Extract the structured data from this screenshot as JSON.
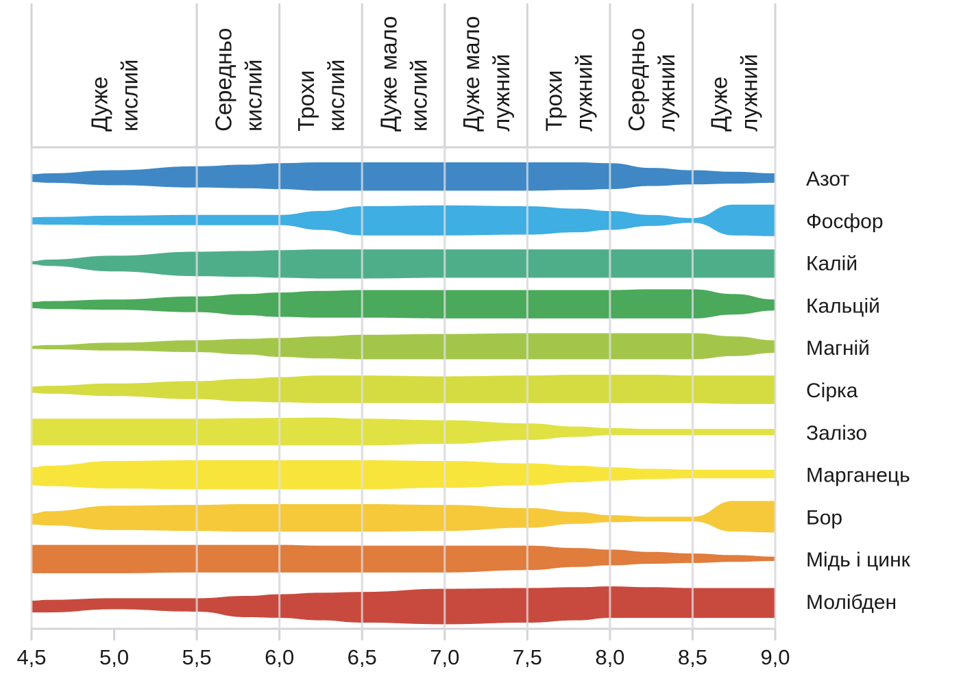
{
  "chart_data": {
    "type": "area",
    "title": "",
    "xlabel": "",
    "ylabel": "",
    "xlim": [
      4.5,
      9.0
    ],
    "x_ticks": [
      "4,5",
      "5,0",
      "5,5",
      "6,0",
      "6,5",
      "7,0",
      "7,5",
      "8,0",
      "8,5",
      "9,0"
    ],
    "x_tick_values": [
      4.5,
      5.0,
      5.5,
      6.0,
      6.5,
      7.0,
      7.5,
      8.0,
      8.5,
      9.0
    ],
    "grid": true,
    "value_meaning": "relative nutrient availability; each band's upper and lower extent from its centerline as a fraction of the maximum half-thickness",
    "ph_zones": [
      {
        "from": 4.5,
        "to": 5.5,
        "lines": [
          "Дуже",
          "кислий"
        ]
      },
      {
        "from": 5.5,
        "to": 6.0,
        "lines": [
          "Середньо",
          "кислий"
        ]
      },
      {
        "from": 6.0,
        "to": 6.5,
        "lines": [
          "Трохи",
          "кислий"
        ]
      },
      {
        "from": 6.5,
        "to": 7.0,
        "lines": [
          "Дуже мало",
          "кислий"
        ]
      },
      {
        "from": 7.0,
        "to": 7.5,
        "lines": [
          "Дуже мало",
          "лужний"
        ]
      },
      {
        "from": 7.5,
        "to": 8.0,
        "lines": [
          "Трохи",
          "лужний"
        ]
      },
      {
        "from": 8.0,
        "to": 8.5,
        "lines": [
          "Середньо",
          "лужний"
        ]
      },
      {
        "from": 8.5,
        "to": 9.0,
        "lines": [
          "Дуже",
          "лужний"
        ]
      }
    ],
    "x": [
      4.5,
      4.6,
      5.0,
      5.5,
      5.8,
      6.0,
      6.25,
      6.5,
      7.0,
      7.5,
      7.8,
      8.0,
      8.25,
      8.5,
      8.75,
      9.0
    ],
    "series": [
      {
        "name": "Азот",
        "color": "#3f88c5",
        "upper": [
          0.25,
          0.3,
          0.5,
          0.75,
          0.85,
          0.95,
          1.0,
          1.0,
          1.0,
          1.0,
          1.0,
          0.95,
          0.65,
          0.5,
          0.4,
          0.3
        ],
        "lower": [
          0.25,
          0.3,
          0.45,
          0.6,
          0.65,
          0.7,
          0.8,
          0.8,
          0.8,
          0.8,
          0.75,
          0.7,
          0.5,
          0.4,
          0.35,
          0.3
        ]
      },
      {
        "name": "Фосфор",
        "color": "#3faee2",
        "upper": [
          0.2,
          0.22,
          0.3,
          0.35,
          0.35,
          0.35,
          0.6,
          0.9,
          0.95,
          0.9,
          0.75,
          0.6,
          0.35,
          0.15,
          1.0,
          1.0
        ],
        "lower": [
          0.25,
          0.27,
          0.3,
          0.3,
          0.3,
          0.3,
          0.6,
          0.95,
          0.95,
          0.9,
          0.75,
          0.6,
          0.35,
          0.15,
          0.95,
          1.0
        ]
      },
      {
        "name": "Калій",
        "color": "#4fae8a",
        "upper": [
          0.1,
          0.2,
          0.45,
          0.7,
          0.75,
          0.8,
          0.85,
          0.85,
          0.85,
          0.85,
          0.85,
          0.85,
          0.85,
          0.85,
          0.85,
          0.85
        ],
        "lower": [
          0.1,
          0.2,
          0.55,
          0.85,
          0.9,
          0.95,
          1.0,
          1.0,
          0.95,
          0.95,
          0.95,
          0.95,
          0.95,
          0.95,
          0.95,
          0.95
        ]
      },
      {
        "name": "Кальцій",
        "color": "#4aa95a",
        "upper": [
          0.2,
          0.25,
          0.35,
          0.55,
          0.7,
          0.8,
          0.9,
          0.95,
          0.95,
          0.95,
          0.95,
          0.95,
          1.0,
          1.0,
          0.7,
          0.35
        ],
        "lower": [
          0.2,
          0.25,
          0.3,
          0.45,
          0.65,
          0.75,
          0.8,
          0.8,
          0.85,
          0.85,
          0.85,
          0.85,
          0.85,
          0.85,
          0.6,
          0.35
        ]
      },
      {
        "name": "Магній",
        "color": "#a3c64a",
        "upper": [
          0.1,
          0.15,
          0.3,
          0.45,
          0.55,
          0.6,
          0.7,
          0.8,
          0.85,
          0.9,
          0.9,
          0.9,
          0.9,
          0.9,
          0.7,
          0.45
        ],
        "lower": [
          0.1,
          0.12,
          0.2,
          0.3,
          0.45,
          0.6,
          0.7,
          0.75,
          0.75,
          0.75,
          0.75,
          0.75,
          0.75,
          0.75,
          0.55,
          0.35
        ]
      },
      {
        "name": "Сірка",
        "color": "#d4dc42",
        "upper": [
          0.2,
          0.25,
          0.4,
          0.55,
          0.7,
          0.8,
          0.9,
          0.9,
          0.85,
          0.9,
          0.95,
          0.95,
          0.95,
          0.9,
          0.9,
          0.9
        ],
        "lower": [
          0.2,
          0.25,
          0.4,
          0.6,
          0.75,
          0.8,
          0.85,
          0.85,
          0.85,
          0.85,
          0.85,
          0.85,
          0.85,
          0.85,
          0.9,
          0.9
        ]
      },
      {
        "name": "Залізо",
        "color": "#dfe242",
        "upper": [
          0.85,
          0.85,
          0.85,
          0.85,
          0.88,
          0.9,
          0.92,
          0.85,
          0.75,
          0.55,
          0.35,
          0.25,
          0.2,
          0.2,
          0.2,
          0.2
        ],
        "lower": [
          0.85,
          0.85,
          0.85,
          0.85,
          0.85,
          0.85,
          0.85,
          0.85,
          0.75,
          0.5,
          0.3,
          0.2,
          0.2,
          0.2,
          0.2,
          0.2
        ]
      },
      {
        "name": "Марганець",
        "color": "#f8e53c",
        "upper": [
          0.45,
          0.55,
          0.85,
          0.9,
          0.9,
          0.9,
          0.9,
          0.9,
          0.85,
          0.7,
          0.55,
          0.45,
          0.35,
          0.3,
          0.3,
          0.3
        ],
        "lower": [
          0.7,
          0.75,
          0.9,
          0.95,
          0.95,
          0.95,
          0.95,
          0.95,
          0.85,
          0.7,
          0.5,
          0.4,
          0.3,
          0.25,
          0.25,
          0.25
        ],
        "offset": 0
      },
      {
        "name": "Бор",
        "color": "#f5c93a",
        "upper": [
          0.2,
          0.35,
          0.7,
          0.75,
          0.8,
          0.8,
          0.8,
          0.8,
          0.75,
          0.55,
          0.3,
          0.1,
          0.0,
          0.0,
          1.0,
          1.0
        ],
        "lower": [
          0.5,
          0.55,
          0.85,
          0.9,
          0.95,
          0.95,
          0.95,
          0.95,
          0.9,
          0.7,
          0.45,
          0.35,
          0.3,
          0.3,
          0.95,
          1.0
        ]
      },
      {
        "name": "Мідь і цинк",
        "color": "#e07c3c",
        "upper": [
          0.9,
          0.9,
          0.9,
          0.9,
          0.9,
          0.9,
          0.85,
          0.85,
          0.85,
          0.85,
          0.7,
          0.6,
          0.45,
          0.35,
          0.25,
          0.15
        ],
        "lower": [
          0.9,
          0.9,
          0.9,
          0.85,
          0.85,
          0.85,
          0.85,
          0.85,
          0.85,
          0.7,
          0.5,
          0.4,
          0.3,
          0.25,
          0.18,
          0.12
        ]
      },
      {
        "name": "Молібден",
        "color": "#c84a3e",
        "upper": [
          0.05,
          0.1,
          0.2,
          0.2,
          0.35,
          0.45,
          0.55,
          0.6,
          0.8,
          0.85,
          0.9,
          0.95,
          0.9,
          0.85,
          0.85,
          0.85
        ],
        "lower": [
          0.7,
          0.7,
          0.5,
          0.65,
          1.0,
          1.05,
          1.2,
          1.35,
          1.45,
          1.35,
          1.2,
          1.05,
          1.05,
          1.05,
          1.05,
          1.05
        ]
      }
    ]
  }
}
